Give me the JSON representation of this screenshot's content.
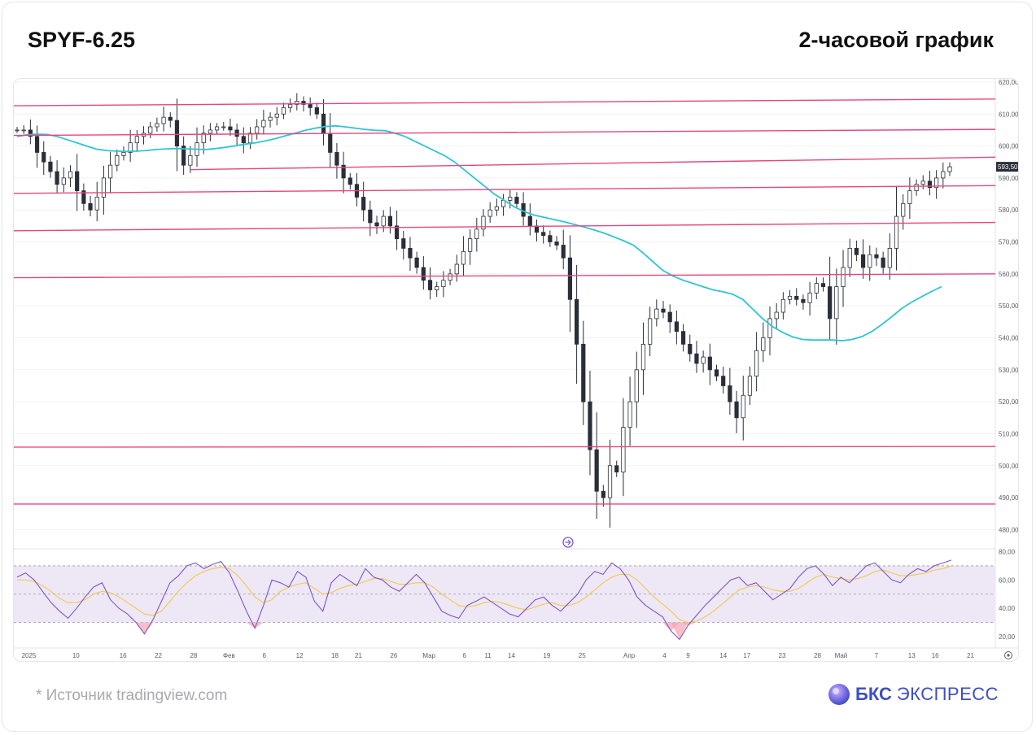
{
  "header": {
    "ticker": "SPYF-6.25",
    "timeframe": "2-часовой график"
  },
  "footer": {
    "source": "*  Источник tradingview.com",
    "brand_bold": "БКС",
    "brand_regular": "ЭКСПРЕСС"
  },
  "colors": {
    "price": "#2a2e39",
    "ma": "#2ec5d3",
    "levels": "#e8457d",
    "rsi": "#7e57c2",
    "rsi_ma": "#f2c94c",
    "rsi_band": "#ede7f6",
    "brand": "#3d4fc2"
  },
  "chart_data": {
    "type": "line",
    "price_axis": {
      "ticks": [
        620,
        610,
        600,
        590,
        580,
        570,
        560,
        550,
        540,
        530,
        520,
        510,
        500,
        490,
        480
      ],
      "tick_labels": [
        "620,00",
        "610,00",
        "600,00",
        "590,00",
        "580,00",
        "570,00",
        "560,00",
        "550,00",
        "540,00",
        "530,00",
        "520,00",
        "510,00",
        "500,00",
        "490,00",
        "480,00"
      ],
      "ylim": [
        474,
        621
      ]
    },
    "last_price_label": "593,50",
    "x_labels": [
      "2025",
      "10",
      "16",
      "22",
      "28",
      "Фев",
      "6",
      "12",
      "18",
      "21",
      "26",
      "Мар",
      "6",
      "11",
      "14",
      "19",
      "25",
      "Апр",
      "4",
      "9",
      "14",
      "17",
      "23",
      "28",
      "Май",
      "7",
      "13",
      "16",
      "21"
    ],
    "x_label_index": [
      1,
      5,
      9,
      12,
      15,
      18,
      21,
      24,
      27,
      29,
      32,
      35,
      38,
      40,
      42,
      45,
      48,
      52,
      55,
      57,
      60,
      62,
      65,
      68,
      70,
      73,
      76,
      78,
      81
    ],
    "candles_per_label_unit": 1,
    "series": [
      {
        "kind": "price",
        "close": [
          605,
          605,
          603,
          598,
          595,
          592,
          588,
          590,
          592,
          586,
          582,
          580,
          584,
          590,
          594,
          597,
          598,
          601,
          603,
          604,
          606,
          607,
          609,
          608,
          600,
          594,
          597,
          601,
          604,
          605,
          606,
          606,
          605,
          603,
          601,
          604,
          606,
          608,
          609,
          610,
          612,
          613,
          614,
          613,
          612,
          610,
          604,
          598,
          594,
          590,
          588,
          584,
          580,
          576,
          575,
          578,
          575,
          571,
          568,
          565,
          562,
          558,
          555,
          556,
          558,
          560,
          563,
          567,
          571,
          574,
          578,
          580,
          581,
          583,
          584,
          582,
          578,
          575,
          573,
          572,
          570,
          569,
          565,
          552,
          538,
          520,
          505,
          492,
          490,
          500,
          498,
          512,
          520,
          530,
          538,
          546,
          549,
          548,
          545,
          542,
          538,
          535,
          532,
          534,
          530,
          528,
          525,
          520,
          515,
          522,
          528,
          536,
          540,
          546,
          548,
          552,
          553,
          552,
          551,
          554,
          557,
          556,
          546,
          556,
          562,
          568,
          566,
          562,
          566,
          565,
          562,
          568,
          578,
          582,
          586,
          588,
          589,
          587,
          590,
          592,
          593.5
        ],
        "high_low_note": "approximate intraday swings read from chart"
      },
      {
        "kind": "moving_average",
        "values": [
          603,
          603.5,
          603.7,
          603.6,
          603,
          602,
          601,
          600,
          599,
          598.6,
          598.4,
          598.3,
          598.4,
          598.6,
          598.9,
          599.1,
          599.2,
          599.1,
          599.0,
          598.9,
          599.2,
          599.6,
          600.1,
          600.6,
          601.0,
          601.6,
          602.3,
          603.2,
          604.0,
          604.9,
          605.6,
          606.1,
          606.3,
          606.0,
          605.6,
          605.2,
          604.9,
          604.8,
          604.0,
          603.0,
          601.5,
          600,
          598.5,
          597,
          595,
          592.5,
          590,
          587.5,
          585,
          583,
          581,
          579.5,
          578.4,
          577.7,
          577.0,
          576.3,
          575.5,
          574.7,
          573.8,
          572.8,
          571.6,
          570.4,
          569,
          566.5,
          563.7,
          561,
          559.3,
          558,
          557,
          556,
          555,
          554.4,
          553.6,
          552,
          549,
          546,
          543.5,
          541.7,
          540.3,
          539.5,
          539.3,
          539.3,
          539.3,
          539.1,
          539.5,
          540.4,
          542,
          544.2,
          546.6,
          549.2,
          551.2,
          552.9,
          554.5,
          556
        ]
      },
      {
        "kind": "horizontal_levels",
        "lines": [
          {
            "from": 612.6,
            "to": 614.7
          },
          {
            "from": 603.3,
            "to": 605.2
          },
          {
            "from": 592.6,
            "to": 596.5,
            "start_index": 0.18
          },
          {
            "from": 585.2,
            "to": 587.6
          },
          {
            "from": 573.5,
            "to": 576.1
          },
          {
            "from": 558.8,
            "to": 560.0
          },
          {
            "from": 505.8,
            "to": 506.0
          },
          {
            "from": 488.0,
            "to": 488.0
          }
        ]
      }
    ],
    "rsi": {
      "tick_labels": [
        "80,00",
        "60,00",
        "40,00",
        "20,00"
      ],
      "ticks": [
        80,
        60,
        40,
        20
      ],
      "ylim": [
        12,
        82
      ],
      "upper": 70,
      "mid": 50,
      "lower": 30,
      "values": [
        62,
        65,
        60,
        52,
        44,
        38,
        33,
        40,
        48,
        55,
        58,
        46,
        40,
        36,
        30,
        22,
        32,
        45,
        58,
        63,
        70,
        72,
        68,
        71,
        73,
        65,
        52,
        38,
        26,
        42,
        60,
        58,
        55,
        66,
        62,
        45,
        38,
        58,
        64,
        60,
        56,
        68,
        62,
        60,
        55,
        52,
        58,
        64,
        58,
        48,
        38,
        35,
        33,
        42,
        45,
        48,
        44,
        40,
        36,
        34,
        40,
        46,
        48,
        42,
        38,
        44,
        50,
        60,
        66,
        64,
        72,
        68,
        60,
        48,
        42,
        38,
        34,
        24,
        18,
        28,
        35,
        42,
        48,
        54,
        60,
        62,
        56,
        58,
        52,
        46,
        50,
        54,
        62,
        68,
        70,
        64,
        56,
        62,
        58,
        64,
        70,
        72,
        66,
        60,
        58,
        64,
        68,
        66,
        70,
        72,
        74
      ],
      "ma_values": [
        60,
        60,
        59,
        56,
        52,
        47,
        44,
        44,
        46,
        50,
        52,
        51,
        48,
        44,
        40,
        36,
        35,
        38,
        45,
        52,
        58,
        63,
        66,
        68,
        69,
        68,
        63,
        56,
        48,
        44,
        46,
        52,
        55,
        57,
        58,
        54,
        50,
        51,
        54,
        56,
        57,
        59,
        61,
        61,
        59,
        57,
        57,
        58,
        58,
        55,
        50,
        46,
        42,
        41,
        42,
        44,
        45,
        44,
        42,
        40,
        39,
        41,
        43,
        44,
        42,
        42,
        44,
        48,
        53,
        58,
        62,
        64,
        64,
        60,
        54,
        48,
        43,
        38,
        32,
        30,
        31,
        34,
        38,
        43,
        48,
        53,
        55,
        56,
        55,
        53,
        52,
        52,
        54,
        58,
        62,
        64,
        62,
        61,
        60,
        61,
        63,
        66,
        67,
        65,
        63,
        63,
        64,
        65,
        67,
        68,
        70
      ]
    },
    "annotation_icon": "arrow-right-circle-icon",
    "settings_icon": "gear-icon"
  }
}
